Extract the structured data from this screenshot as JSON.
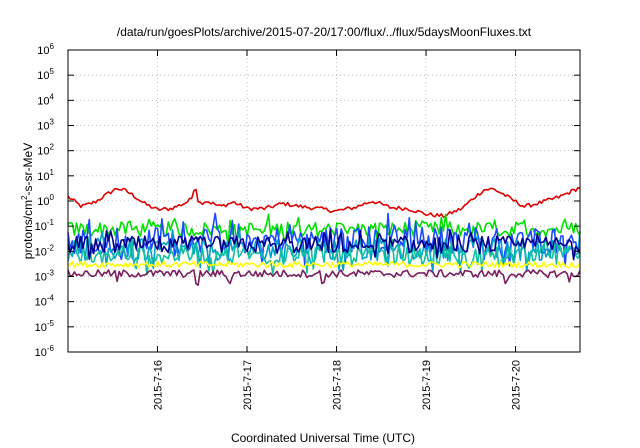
{
  "chart_data": {
    "type": "line",
    "title": "/data/run/goesPlots/archive/2015-07-20/17:00/flux/../flux/5daysMoonFluxes.txt",
    "xlabel": "Coordinated Universal Time (UTC)",
    "ylabel_parts": [
      "protons/cm",
      "2",
      "-s-sr-MeV"
    ],
    "yscale": "log",
    "ylim": [
      1e-06,
      1000000.0
    ],
    "y_ticks": [
      {
        "base": "10",
        "exp": "-6",
        "value": 1e-06
      },
      {
        "base": "10",
        "exp": "-5",
        "value": 1e-05
      },
      {
        "base": "10",
        "exp": "-4",
        "value": 0.0001
      },
      {
        "base": "10",
        "exp": "-3",
        "value": 0.001
      },
      {
        "base": "10",
        "exp": "-2",
        "value": 0.01
      },
      {
        "base": "10",
        "exp": "-1",
        "value": 0.1
      },
      {
        "base": "10",
        "exp": "0",
        "value": 1
      },
      {
        "base": "10",
        "exp": "1",
        "value": 10
      },
      {
        "base": "10",
        "exp": "2",
        "value": 100
      },
      {
        "base": "10",
        "exp": "3",
        "value": 1000
      },
      {
        "base": "10",
        "exp": "4",
        "value": 10000
      },
      {
        "base": "10",
        "exp": "5",
        "value": 100000
      },
      {
        "base": "10",
        "exp": "6",
        "value": 1000000
      }
    ],
    "xlim": [
      15.0,
      20.72
    ],
    "x_ticks": [
      {
        "label": "2015-7-16",
        "day": 16
      },
      {
        "label": "2015-7-17",
        "day": 17
      },
      {
        "label": "2015-7-18",
        "day": 18
      },
      {
        "label": "2015-7-19",
        "day": 19
      },
      {
        "label": "2015-7-20",
        "day": 20
      }
    ],
    "grid": true,
    "series": [
      {
        "color": "#e00000",
        "noise": 0.08,
        "x": [
          15.0,
          15.15,
          15.3,
          15.45,
          15.55,
          15.65,
          15.75,
          15.85,
          16.0,
          16.15,
          16.3,
          16.38,
          16.42,
          16.46,
          16.55,
          16.7,
          16.85,
          17.0,
          17.2,
          17.4,
          17.6,
          17.8,
          18.0,
          18.2,
          18.4,
          18.6,
          18.8,
          19.0,
          19.2,
          19.4,
          19.55,
          19.65,
          19.75,
          19.85,
          19.95,
          20.1,
          20.3,
          20.5,
          20.72
        ],
        "y": [
          1.5,
          0.6,
          0.9,
          2.0,
          3.2,
          2.5,
          1.5,
          0.8,
          0.45,
          0.5,
          0.8,
          1.2,
          5.0,
          0.8,
          1.0,
          0.6,
          0.9,
          0.5,
          0.5,
          0.8,
          0.6,
          0.5,
          0.4,
          0.55,
          1.0,
          0.55,
          0.5,
          0.3,
          0.25,
          0.5,
          1.5,
          2.8,
          3.0,
          2.0,
          1.2,
          0.6,
          0.9,
          1.5,
          3.5
        ]
      },
      {
        "color": "#00e000",
        "base": 0.075,
        "noise": 0.3,
        "spike": 2.2,
        "x": [
          15.0,
          20.72
        ],
        "y": [
          0.075,
          0.075
        ]
      },
      {
        "color": "#1a4bff",
        "base": 0.028,
        "noise": 0.55,
        "spike": 3.5,
        "x": [
          15.0,
          20.72
        ],
        "y": [
          0.028,
          0.028
        ]
      },
      {
        "color": "#00a0c8",
        "base": 0.012,
        "noise": 0.45,
        "spike": 3.0,
        "x": [
          15.0,
          20.72
        ],
        "y": [
          0.012,
          0.012
        ]
      },
      {
        "color": "#10c0a0",
        "base": 0.007,
        "noise": 0.4,
        "spike": 2.5,
        "x": [
          15.0,
          20.72
        ],
        "y": [
          0.007,
          0.007
        ]
      },
      {
        "color": "#00008b",
        "base": 0.018,
        "noise": 0.35,
        "spike": 2.0,
        "x": [
          15.0,
          20.72
        ],
        "y": [
          0.018,
          0.018
        ]
      },
      {
        "color": "#ffff00",
        "base": 0.003,
        "noise": 0.12,
        "x": [
          15.0,
          20.72
        ],
        "y": [
          0.003,
          0.003
        ]
      },
      {
        "color": "#7a1e5e",
        "base": 0.0013,
        "noise": 0.15,
        "dips": [
          15.55,
          16.45,
          16.8,
          17.85,
          19.9,
          20.6
        ],
        "x": [
          15.0,
          20.72
        ],
        "y": [
          0.0013,
          0.0013
        ]
      }
    ]
  }
}
